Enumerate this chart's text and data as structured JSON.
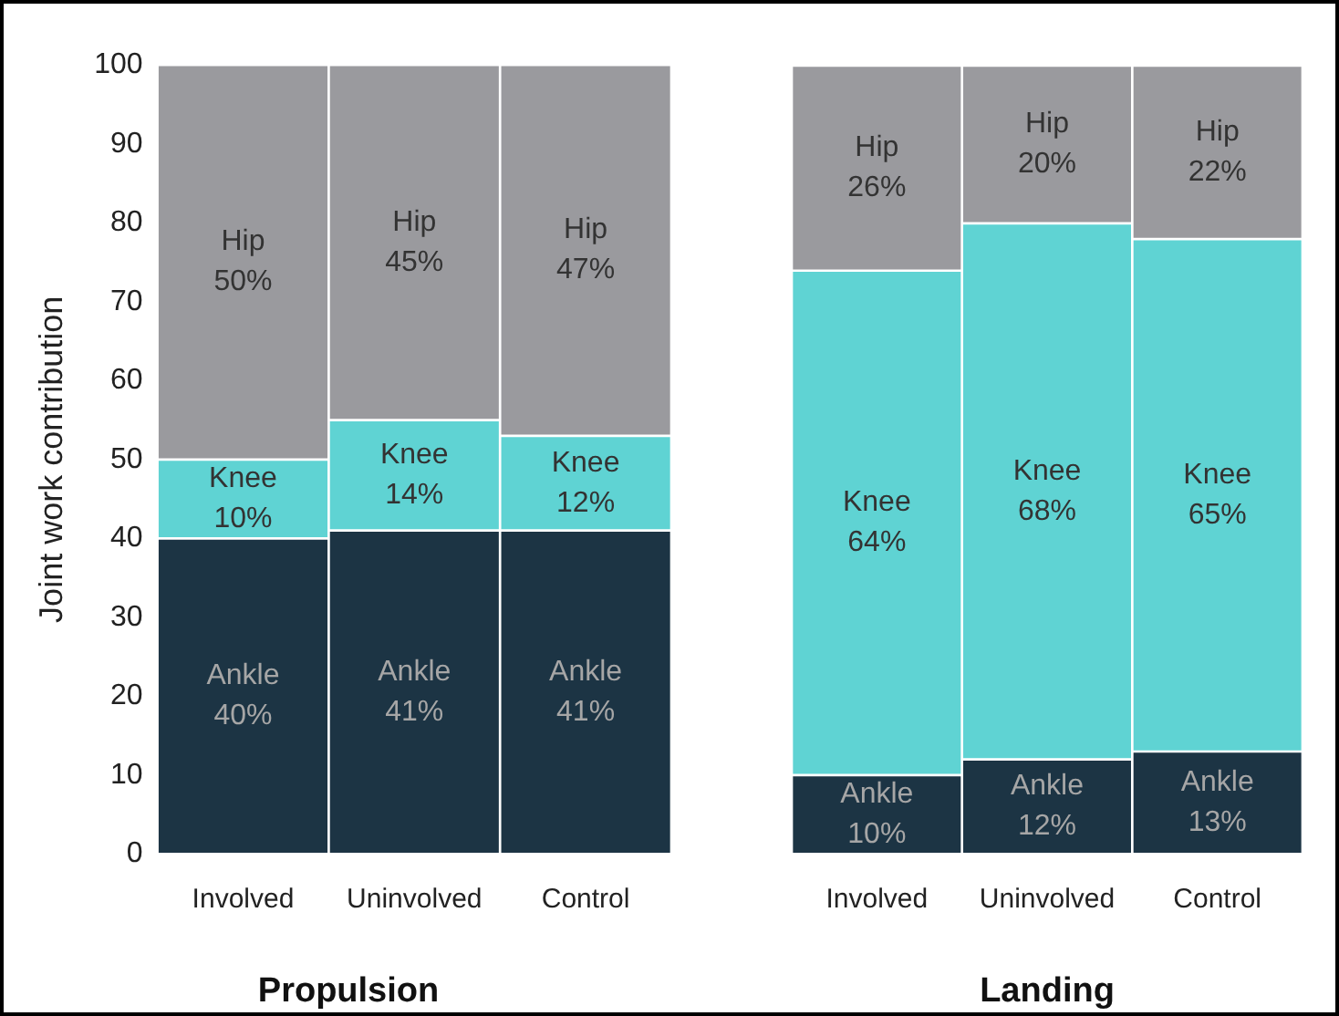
{
  "chart_data": [
    {
      "type": "bar",
      "title": "Propulsion",
      "ylabel": "Joint work contribution",
      "stacked": true,
      "categories": [
        "Involved",
        "Uninvolved",
        "Control"
      ],
      "ylim": [
        0,
        100
      ],
      "yticks": [
        0,
        10,
        20,
        30,
        40,
        50,
        60,
        70,
        80,
        90,
        100
      ],
      "grid": false,
      "legend": false,
      "series": [
        {
          "name": "Ankle",
          "color": "#1c3444",
          "values": [
            40,
            41,
            41
          ],
          "value_labels": [
            "40%",
            "41%",
            "41%"
          ]
        },
        {
          "name": "Knee",
          "color": "#5fd3d3",
          "values": [
            10,
            14,
            12
          ],
          "value_labels": [
            "10%",
            "14%",
            "12%"
          ]
        },
        {
          "name": "Hip",
          "color": "#9a9a9e",
          "values": [
            50,
            45,
            47
          ],
          "value_labels": [
            "50%",
            "45%",
            "47%"
          ]
        }
      ]
    },
    {
      "type": "bar",
      "title": "Landing",
      "stacked": true,
      "categories": [
        "Involved",
        "Uninvolved",
        "Control"
      ],
      "ylim": [
        0,
        100
      ],
      "yticks": [
        0,
        10,
        20,
        30,
        40,
        50,
        60,
        70,
        80,
        90,
        100
      ],
      "tick_labels": "x",
      "grid": false,
      "legend": false,
      "series": [
        {
          "name": "Ankle",
          "color": "#1c3444",
          "values": [
            10,
            12,
            13
          ],
          "value_labels": [
            "10%",
            "12%",
            "13%"
          ]
        },
        {
          "name": "Knee",
          "color": "#5fd3d3",
          "values": [
            64,
            68,
            65
          ],
          "value_labels": [
            "64%",
            "68%",
            "65%"
          ]
        },
        {
          "name": "Hip",
          "color": "#9a9a9e",
          "values": [
            26,
            20,
            22
          ],
          "value_labels": [
            "26%",
            "20%",
            "22%"
          ]
        }
      ]
    }
  ]
}
